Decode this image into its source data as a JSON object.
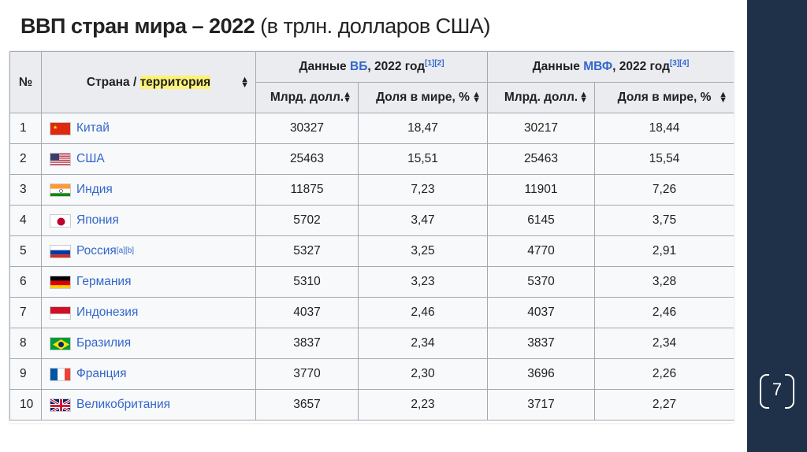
{
  "slide": {
    "title_bold": "ВВП стран мира – 2022",
    "title_normal": " (в трлн. долларов США)",
    "page_number": "7"
  },
  "table": {
    "col_no": "№",
    "col_country_prefix": "Страна / ",
    "col_country_highlight": "территория",
    "wb_group_prefix": "Данные ",
    "wb_group_link": "ВБ",
    "wb_group_suffix": ", 2022 год",
    "wb_group_refs": "[1][2]",
    "imf_group_prefix": "Данные ",
    "imf_group_link": "МВФ",
    "imf_group_suffix": ", 2022 год",
    "imf_group_refs": "[3][4]",
    "sub_bln": "Млрд. долл.",
    "sub_share": "Доля в мире, %",
    "rows": [
      {
        "no": "1",
        "country": "Китай",
        "flag": "cn",
        "refs": "",
        "wb_val": "30327",
        "wb_share": "18,47",
        "imf_val": "30217",
        "imf_share": "18,44"
      },
      {
        "no": "2",
        "country": "США",
        "flag": "us",
        "refs": "",
        "wb_val": "25463",
        "wb_share": "15,51",
        "imf_val": "25463",
        "imf_share": "15,54"
      },
      {
        "no": "3",
        "country": "Индия",
        "flag": "in",
        "refs": "",
        "wb_val": "11875",
        "wb_share": "7,23",
        "imf_val": "11901",
        "imf_share": "7,26"
      },
      {
        "no": "4",
        "country": "Япония",
        "flag": "jp",
        "refs": "",
        "wb_val": "5702",
        "wb_share": "3,47",
        "imf_val": "6145",
        "imf_share": "3,75"
      },
      {
        "no": "5",
        "country": "Россия",
        "flag": "ru",
        "refs": "[a][b]",
        "wb_val": "5327",
        "wb_share": "3,25",
        "imf_val": "4770",
        "imf_share": "2,91"
      },
      {
        "no": "6",
        "country": "Германия",
        "flag": "de",
        "refs": "",
        "wb_val": "5310",
        "wb_share": "3,23",
        "imf_val": "5370",
        "imf_share": "3,28"
      },
      {
        "no": "7",
        "country": "Индонезия",
        "flag": "id",
        "refs": "",
        "wb_val": "4037",
        "wb_share": "2,46",
        "imf_val": "4037",
        "imf_share": "2,46"
      },
      {
        "no": "8",
        "country": "Бразилия",
        "flag": "br",
        "refs": "",
        "wb_val": "3837",
        "wb_share": "2,34",
        "imf_val": "3837",
        "imf_share": "2,34"
      },
      {
        "no": "9",
        "country": "Франция",
        "flag": "fr",
        "refs": "",
        "wb_val": "3770",
        "wb_share": "2,30",
        "imf_val": "3696",
        "imf_share": "2,26"
      },
      {
        "no": "10",
        "country": "Великобритания",
        "flag": "gb",
        "refs": "",
        "wb_val": "3657",
        "wb_share": "2,23",
        "imf_val": "3717",
        "imf_share": "2,27"
      }
    ]
  }
}
